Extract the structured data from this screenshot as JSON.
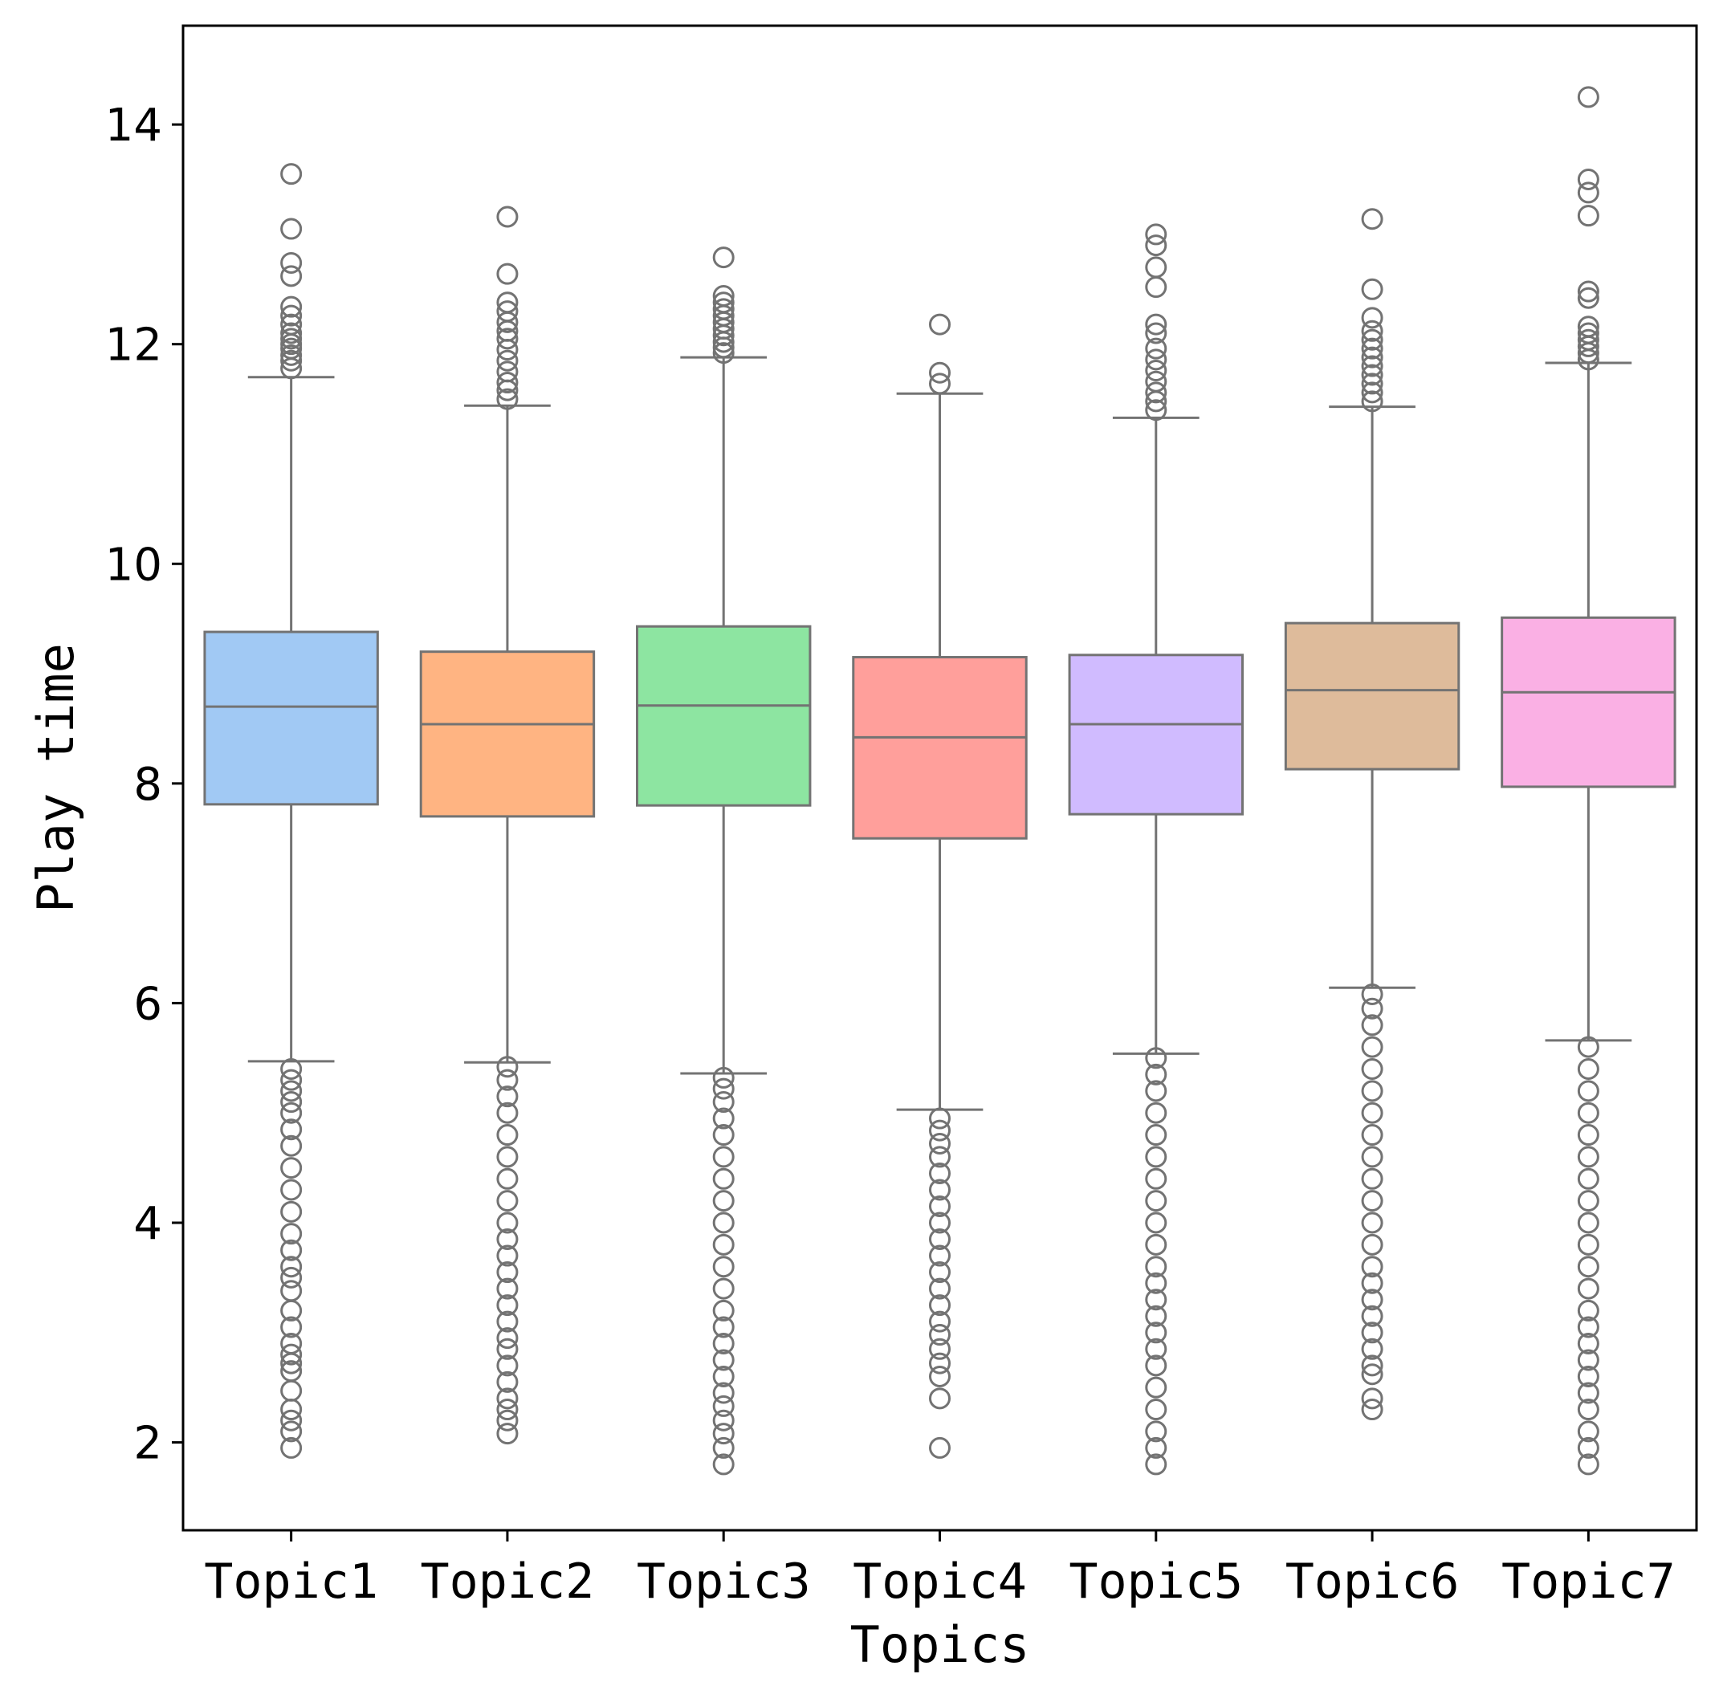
{
  "chart_data": {
    "type": "box",
    "xlabel": "Topics",
    "ylabel": "Play time",
    "ylim": [
      1.2,
      14.9
    ],
    "yticks": [
      2,
      4,
      6,
      8,
      10,
      12,
      14
    ],
    "ytick_labels": [
      "2",
      "4",
      "6",
      "8",
      "10",
      "12",
      "14"
    ],
    "categories": [
      "Topic1",
      "Topic2",
      "Topic3",
      "Topic4",
      "Topic5",
      "Topic6",
      "Topic7"
    ],
    "series": [
      {
        "name": "Topic1",
        "color": "#a1c9f4",
        "whisker_low": 5.47,
        "q1": 7.81,
        "median": 8.7,
        "q3": 9.38,
        "whisker_high": 11.7,
        "outliers_high": [
          11.78,
          11.85,
          11.9,
          11.96,
          12.0,
          12.05,
          12.1,
          12.18,
          12.26,
          12.34,
          12.62,
          12.74,
          13.05,
          13.55
        ],
        "outliers_low": [
          1.95,
          2.1,
          2.2,
          2.3,
          2.47,
          2.65,
          2.72,
          2.8,
          2.9,
          3.05,
          3.2,
          3.38,
          3.5,
          3.6,
          3.75,
          3.9,
          4.1,
          4.3,
          4.5,
          4.7,
          4.85,
          5.0,
          5.1,
          5.2,
          5.3,
          5.4
        ]
      },
      {
        "name": "Topic2",
        "color": "#ffb482",
        "whisker_low": 5.46,
        "q1": 7.7,
        "median": 8.54,
        "q3": 9.2,
        "whisker_high": 11.44,
        "outliers_high": [
          11.5,
          11.58,
          11.65,
          11.75,
          11.85,
          11.95,
          12.05,
          12.12,
          12.2,
          12.3,
          12.38,
          12.64,
          13.16
        ],
        "outliers_low": [
          2.08,
          2.2,
          2.3,
          2.4,
          2.55,
          2.7,
          2.85,
          2.95,
          3.1,
          3.25,
          3.4,
          3.55,
          3.7,
          3.85,
          4.0,
          4.2,
          4.4,
          4.6,
          4.8,
          5.0,
          5.15,
          5.3,
          5.42
        ]
      },
      {
        "name": "Topic3",
        "color": "#8de5a1",
        "whisker_low": 5.36,
        "q1": 7.8,
        "median": 8.71,
        "q3": 9.43,
        "whisker_high": 11.88,
        "outliers_high": [
          11.92,
          11.97,
          12.02,
          12.08,
          12.14,
          12.2,
          12.26,
          12.32,
          12.38,
          12.44,
          12.79
        ],
        "outliers_low": [
          1.8,
          1.95,
          2.08,
          2.2,
          2.33,
          2.45,
          2.6,
          2.75,
          2.9,
          3.05,
          3.2,
          3.4,
          3.6,
          3.8,
          4.0,
          4.2,
          4.4,
          4.6,
          4.8,
          4.95,
          5.1,
          5.22,
          5.32
        ]
      },
      {
        "name": "Topic4",
        "color": "#ff9f9b",
        "whisker_low": 5.03,
        "q1": 7.5,
        "median": 8.42,
        "q3": 9.15,
        "whisker_high": 11.55,
        "outliers_high": [
          11.64,
          11.74,
          12.18
        ],
        "outliers_low": [
          1.95,
          2.4,
          2.6,
          2.72,
          2.85,
          2.98,
          3.1,
          3.25,
          3.4,
          3.55,
          3.7,
          3.85,
          4.0,
          4.15,
          4.3,
          4.45,
          4.6,
          4.72,
          4.84,
          4.95
        ]
      },
      {
        "name": "Topic5",
        "color": "#d0bbff",
        "whisker_low": 5.54,
        "q1": 7.72,
        "median": 8.54,
        "q3": 9.17,
        "whisker_high": 11.33,
        "outliers_high": [
          11.4,
          11.48,
          11.56,
          11.66,
          11.76,
          11.86,
          11.96,
          12.1,
          12.18,
          12.52,
          12.7,
          12.9,
          13.0
        ],
        "outliers_low": [
          1.8,
          1.95,
          2.1,
          2.3,
          2.5,
          2.7,
          2.85,
          3.0,
          3.15,
          3.3,
          3.45,
          3.6,
          3.8,
          4.0,
          4.2,
          4.4,
          4.6,
          4.8,
          5.0,
          5.2,
          5.35,
          5.5
        ]
      },
      {
        "name": "Topic6",
        "color": "#debb9b",
        "whisker_low": 6.14,
        "q1": 8.13,
        "median": 8.85,
        "q3": 9.46,
        "whisker_high": 11.43,
        "outliers_high": [
          11.48,
          11.56,
          11.64,
          11.72,
          11.8,
          11.88,
          11.96,
          12.04,
          12.12,
          12.24,
          12.5,
          13.14
        ],
        "outliers_low": [
          2.3,
          2.4,
          2.62,
          2.7,
          2.85,
          3.0,
          3.15,
          3.3,
          3.45,
          3.6,
          3.8,
          4.0,
          4.2,
          4.4,
          4.6,
          4.8,
          5.0,
          5.2,
          5.4,
          5.6,
          5.8,
          5.95,
          6.08
        ]
      },
      {
        "name": "Topic7",
        "color": "#fab0e4",
        "whisker_low": 5.66,
        "q1": 7.97,
        "median": 8.83,
        "q3": 9.51,
        "whisker_high": 11.83,
        "outliers_high": [
          11.86,
          11.92,
          11.98,
          12.04,
          12.1,
          12.16,
          12.42,
          12.48,
          13.17,
          13.38,
          13.5,
          14.25
        ],
        "outliers_low": [
          1.8,
          1.95,
          2.1,
          2.3,
          2.45,
          2.6,
          2.75,
          2.9,
          3.05,
          3.2,
          3.4,
          3.6,
          3.8,
          4.0,
          4.2,
          4.4,
          4.6,
          4.8,
          5.0,
          5.2,
          5.4,
          5.6
        ]
      }
    ]
  }
}
